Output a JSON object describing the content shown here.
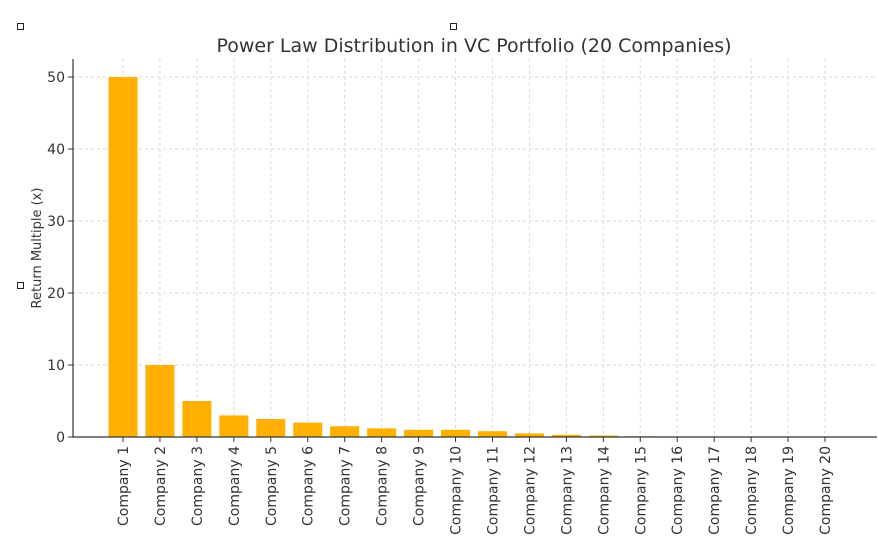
{
  "chart_data": {
    "type": "bar",
    "title": "Power Law Distribution in VC Portfolio (20 Companies)",
    "xlabel": "",
    "ylabel": "Return Multiple (x)",
    "ylim": [
      0,
      52.5
    ],
    "yticks": [
      0,
      10,
      20,
      30,
      40,
      50
    ],
    "grid": true,
    "bar_color": "#ffb000",
    "categories": [
      "Company 1",
      "Company 2",
      "Company 3",
      "Company 4",
      "Company 5",
      "Company 6",
      "Company 7",
      "Company 8",
      "Company 9",
      "Company 10",
      "Company 11",
      "Company 12",
      "Company 13",
      "Company 14",
      "Company 15",
      "Company 16",
      "Company 17",
      "Company 18",
      "Company 19",
      "Company 20"
    ],
    "values": [
      50,
      10,
      5,
      3,
      2.5,
      2,
      1.5,
      1.2,
      1,
      1,
      0.8,
      0.5,
      0.3,
      0.2,
      0.1,
      0.05,
      0.02,
      0.01,
      0.005,
      0.001
    ]
  }
}
